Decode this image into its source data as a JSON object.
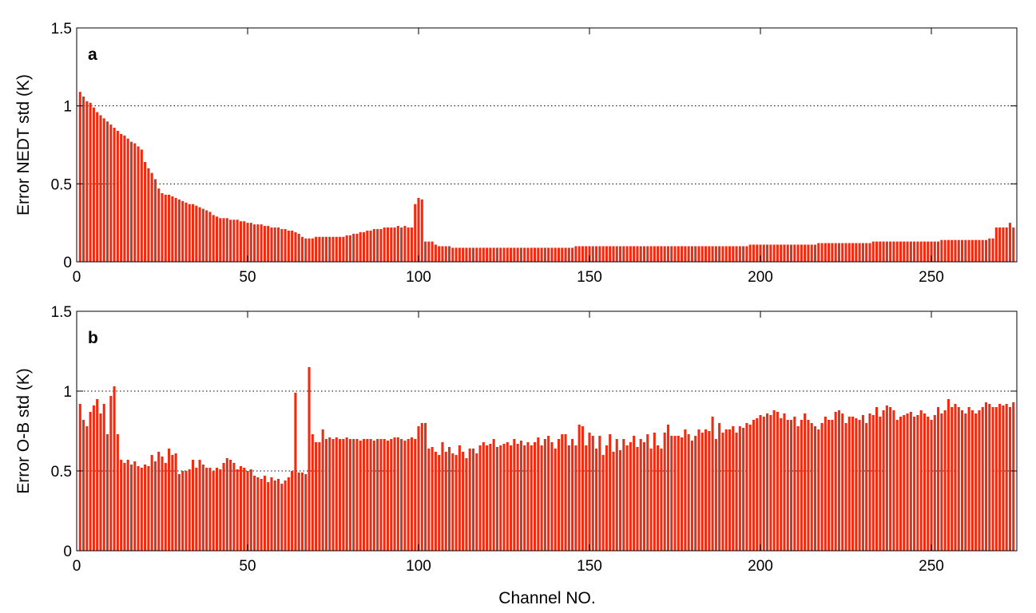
{
  "chart_data": {
    "type": "bar",
    "xlabel": "Channel NO.",
    "color": "#f22a10",
    "ygrid": true,
    "xlim": [
      0,
      275
    ],
    "xticks": [
      0,
      50,
      100,
      150,
      200,
      250
    ],
    "x": [
      1,
      2,
      3,
      4,
      5,
      6,
      7,
      8,
      9,
      10,
      11,
      12,
      13,
      14,
      15,
      16,
      17,
      18,
      19,
      20,
      21,
      22,
      23,
      24,
      25,
      26,
      27,
      28,
      29,
      30,
      31,
      32,
      33,
      34,
      35,
      36,
      37,
      38,
      39,
      40,
      41,
      42,
      43,
      44,
      45,
      46,
      47,
      48,
      49,
      50,
      51,
      52,
      53,
      54,
      55,
      56,
      57,
      58,
      59,
      60,
      61,
      62,
      63,
      64,
      65,
      66,
      67,
      68,
      69,
      70,
      71,
      72,
      73,
      74,
      75,
      76,
      77,
      78,
      79,
      80,
      81,
      82,
      83,
      84,
      85,
      86,
      87,
      88,
      89,
      90,
      91,
      92,
      93,
      94,
      95,
      96,
      97,
      98,
      99,
      100,
      101,
      102,
      103,
      104,
      105,
      106,
      107,
      108,
      109,
      110,
      111,
      112,
      113,
      114,
      115,
      116,
      117,
      118,
      119,
      120,
      121,
      122,
      123,
      124,
      125,
      126,
      127,
      128,
      129,
      130,
      131,
      132,
      133,
      134,
      135,
      136,
      137,
      138,
      139,
      140,
      141,
      142,
      143,
      144,
      145,
      146,
      147,
      148,
      149,
      150,
      151,
      152,
      153,
      154,
      155,
      156,
      157,
      158,
      159,
      160,
      161,
      162,
      163,
      164,
      165,
      166,
      167,
      168,
      169,
      170,
      171,
      172,
      173,
      174,
      175,
      176,
      177,
      178,
      179,
      180,
      181,
      182,
      183,
      184,
      185,
      186,
      187,
      188,
      189,
      190,
      191,
      192,
      193,
      194,
      195,
      196,
      197,
      198,
      199,
      200,
      201,
      202,
      203,
      204,
      205,
      206,
      207,
      208,
      209,
      210,
      211,
      212,
      213,
      214,
      215,
      216,
      217,
      218,
      219,
      220,
      221,
      222,
      223,
      224,
      225,
      226,
      227,
      228,
      229,
      230,
      231,
      232,
      233,
      234,
      235,
      236,
      237,
      238,
      239,
      240,
      241,
      242,
      243,
      244,
      245,
      246,
      247,
      248,
      249,
      250,
      251,
      252,
      253,
      254,
      255,
      256,
      257,
      258,
      259,
      260,
      261,
      262,
      263,
      264,
      265,
      266,
      267,
      268,
      269,
      270,
      271,
      272,
      273,
      274
    ],
    "panels": [
      {
        "label": "a",
        "ylabel": "Error NEDT std (K)",
        "ylim": [
          0,
          1.5
        ],
        "yticks": [
          0,
          0.5,
          1,
          1.5
        ],
        "values": [
          1.09,
          1.06,
          1.03,
          1.02,
          0.99,
          0.96,
          0.94,
          0.92,
          0.9,
          0.88,
          0.86,
          0.84,
          0.82,
          0.81,
          0.79,
          0.77,
          0.76,
          0.74,
          0.72,
          0.64,
          0.6,
          0.57,
          0.53,
          0.47,
          0.44,
          0.43,
          0.43,
          0.42,
          0.41,
          0.4,
          0.39,
          0.38,
          0.37,
          0.37,
          0.36,
          0.35,
          0.34,
          0.33,
          0.32,
          0.3,
          0.29,
          0.28,
          0.28,
          0.28,
          0.27,
          0.27,
          0.27,
          0.26,
          0.26,
          0.25,
          0.25,
          0.24,
          0.24,
          0.24,
          0.23,
          0.23,
          0.22,
          0.22,
          0.22,
          0.21,
          0.21,
          0.2,
          0.2,
          0.19,
          0.18,
          0.16,
          0.15,
          0.15,
          0.15,
          0.16,
          0.16,
          0.16,
          0.16,
          0.16,
          0.16,
          0.16,
          0.16,
          0.16,
          0.17,
          0.17,
          0.18,
          0.18,
          0.19,
          0.19,
          0.2,
          0.2,
          0.21,
          0.21,
          0.21,
          0.22,
          0.22,
          0.22,
          0.22,
          0.23,
          0.22,
          0.23,
          0.22,
          0.22,
          0.37,
          0.41,
          0.4,
          0.13,
          0.13,
          0.13,
          0.11,
          0.1,
          0.1,
          0.1,
          0.1,
          0.09,
          0.09,
          0.09,
          0.09,
          0.09,
          0.09,
          0.09,
          0.09,
          0.09,
          0.09,
          0.09,
          0.09,
          0.09,
          0.09,
          0.09,
          0.09,
          0.09,
          0.09,
          0.09,
          0.09,
          0.09,
          0.09,
          0.09,
          0.09,
          0.09,
          0.09,
          0.09,
          0.09,
          0.09,
          0.09,
          0.09,
          0.09,
          0.09,
          0.09,
          0.09,
          0.09,
          0.1,
          0.1,
          0.1,
          0.1,
          0.1,
          0.1,
          0.1,
          0.1,
          0.1,
          0.1,
          0.1,
          0.1,
          0.1,
          0.1,
          0.1,
          0.1,
          0.1,
          0.1,
          0.1,
          0.1,
          0.1,
          0.1,
          0.1,
          0.1,
          0.1,
          0.1,
          0.1,
          0.1,
          0.1,
          0.1,
          0.1,
          0.1,
          0.1,
          0.1,
          0.1,
          0.1,
          0.1,
          0.1,
          0.1,
          0.1,
          0.1,
          0.1,
          0.1,
          0.1,
          0.1,
          0.1,
          0.1,
          0.1,
          0.1,
          0.1,
          0.1,
          0.11,
          0.11,
          0.11,
          0.11,
          0.11,
          0.11,
          0.11,
          0.11,
          0.11,
          0.11,
          0.11,
          0.11,
          0.11,
          0.11,
          0.11,
          0.11,
          0.11,
          0.11,
          0.11,
          0.11,
          0.12,
          0.12,
          0.12,
          0.12,
          0.12,
          0.12,
          0.12,
          0.12,
          0.12,
          0.12,
          0.12,
          0.12,
          0.12,
          0.12,
          0.12,
          0.12,
          0.13,
          0.13,
          0.13,
          0.13,
          0.13,
          0.13,
          0.13,
          0.13,
          0.13,
          0.13,
          0.13,
          0.13,
          0.13,
          0.13,
          0.13,
          0.13,
          0.13,
          0.13,
          0.13,
          0.13,
          0.14,
          0.14,
          0.14,
          0.14,
          0.14,
          0.14,
          0.14,
          0.14,
          0.14,
          0.14,
          0.14,
          0.14,
          0.14,
          0.14,
          0.15,
          0.15,
          0.22,
          0.22,
          0.22,
          0.22,
          0.25,
          0.22
        ]
      },
      {
        "label": "b",
        "ylabel": "Error O-B std (K)",
        "ylim": [
          0,
          1.5
        ],
        "yticks": [
          0,
          0.5,
          1,
          1.5
        ],
        "values": [
          0.92,
          0.82,
          0.78,
          0.87,
          0.91,
          0.95,
          0.86,
          0.92,
          0.73,
          0.97,
          1.03,
          0.73,
          0.57,
          0.55,
          0.57,
          0.54,
          0.56,
          0.53,
          0.52,
          0.54,
          0.53,
          0.6,
          0.56,
          0.62,
          0.59,
          0.55,
          0.64,
          0.6,
          0.61,
          0.48,
          0.5,
          0.5,
          0.51,
          0.57,
          0.52,
          0.57,
          0.54,
          0.52,
          0.52,
          0.5,
          0.52,
          0.51,
          0.55,
          0.58,
          0.57,
          0.55,
          0.51,
          0.53,
          0.52,
          0.5,
          0.51,
          0.47,
          0.46,
          0.45,
          0.47,
          0.43,
          0.46,
          0.44,
          0.45,
          0.42,
          0.44,
          0.46,
          0.5,
          0.99,
          0.49,
          0.49,
          0.48,
          1.15,
          0.73,
          0.68,
          0.68,
          0.76,
          0.7,
          0.71,
          0.7,
          0.71,
          0.7,
          0.7,
          0.71,
          0.7,
          0.7,
          0.7,
          0.69,
          0.7,
          0.7,
          0.7,
          0.69,
          0.7,
          0.7,
          0.7,
          0.69,
          0.7,
          0.71,
          0.71,
          0.7,
          0.69,
          0.7,
          0.71,
          0.7,
          0.78,
          0.8,
          0.8,
          0.64,
          0.65,
          0.62,
          0.6,
          0.68,
          0.62,
          0.65,
          0.61,
          0.6,
          0.66,
          0.62,
          0.58,
          0.64,
          0.64,
          0.61,
          0.66,
          0.68,
          0.66,
          0.67,
          0.7,
          0.65,
          0.66,
          0.67,
          0.68,
          0.66,
          0.7,
          0.67,
          0.69,
          0.66,
          0.68,
          0.66,
          0.68,
          0.71,
          0.66,
          0.7,
          0.72,
          0.68,
          0.64,
          0.7,
          0.73,
          0.73,
          0.66,
          0.7,
          0.66,
          0.79,
          0.78,
          0.66,
          0.74,
          0.72,
          0.64,
          0.72,
          0.6,
          0.66,
          0.73,
          0.62,
          0.7,
          0.63,
          0.7,
          0.66,
          0.68,
          0.72,
          0.65,
          0.7,
          0.68,
          0.73,
          0.64,
          0.74,
          0.66,
          0.64,
          0.74,
          0.79,
          0.72,
          0.72,
          0.72,
          0.71,
          0.76,
          0.73,
          0.69,
          0.72,
          0.76,
          0.74,
          0.76,
          0.75,
          0.84,
          0.7,
          0.8,
          0.74,
          0.76,
          0.76,
          0.78,
          0.74,
          0.78,
          0.77,
          0.8,
          0.79,
          0.82,
          0.83,
          0.85,
          0.84,
          0.86,
          0.85,
          0.88,
          0.87,
          0.83,
          0.86,
          0.82,
          0.82,
          0.84,
          0.78,
          0.82,
          0.86,
          0.82,
          0.8,
          0.78,
          0.76,
          0.8,
          0.84,
          0.82,
          0.82,
          0.87,
          0.88,
          0.86,
          0.8,
          0.84,
          0.84,
          0.83,
          0.82,
          0.85,
          0.8,
          0.86,
          0.85,
          0.9,
          0.84,
          0.88,
          0.91,
          0.9,
          0.88,
          0.82,
          0.84,
          0.85,
          0.86,
          0.87,
          0.84,
          0.85,
          0.88,
          0.86,
          0.84,
          0.82,
          0.85,
          0.9,
          0.86,
          0.88,
          0.95,
          0.9,
          0.92,
          0.9,
          0.88,
          0.86,
          0.9,
          0.88,
          0.86,
          0.88,
          0.9,
          0.93,
          0.92,
          0.9,
          0.9,
          0.92,
          0.91,
          0.92,
          0.9,
          0.93
        ]
      }
    ]
  }
}
